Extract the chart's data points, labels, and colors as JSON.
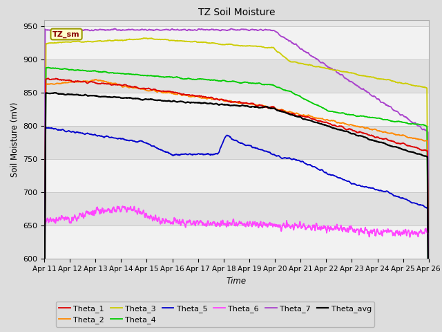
{
  "title": "TZ Soil Moisture",
  "xlabel": "Time",
  "ylabel": "Soil Moisture (mV)",
  "ylim": [
    600,
    960
  ],
  "yticks": [
    600,
    650,
    700,
    750,
    800,
    850,
    900,
    950
  ],
  "x_labels": [
    "Apr 11",
    "Apr 12",
    "Apr 13",
    "Apr 14",
    "Apr 15",
    "Apr 16",
    "Apr 17",
    "Apr 18",
    "Apr 19",
    "Apr 20",
    "Apr 21",
    "Apr 22",
    "Apr 23",
    "Apr 24",
    "Apr 25",
    "Apr 26"
  ],
  "legend_label": "TZ_sm",
  "bg_color": "#dddddd",
  "plot_bg_color": "#e8e8e8",
  "band_colors": [
    "#f2f2f2",
    "#e0e0e0"
  ],
  "series_colors": {
    "Theta_1": "#dd0000",
    "Theta_2": "#ff8800",
    "Theta_3": "#cccc00",
    "Theta_4": "#00cc00",
    "Theta_5": "#0000cc",
    "Theta_6": "#ff44ff",
    "Theta_7": "#aa44cc",
    "Theta_avg": "#000000"
  }
}
